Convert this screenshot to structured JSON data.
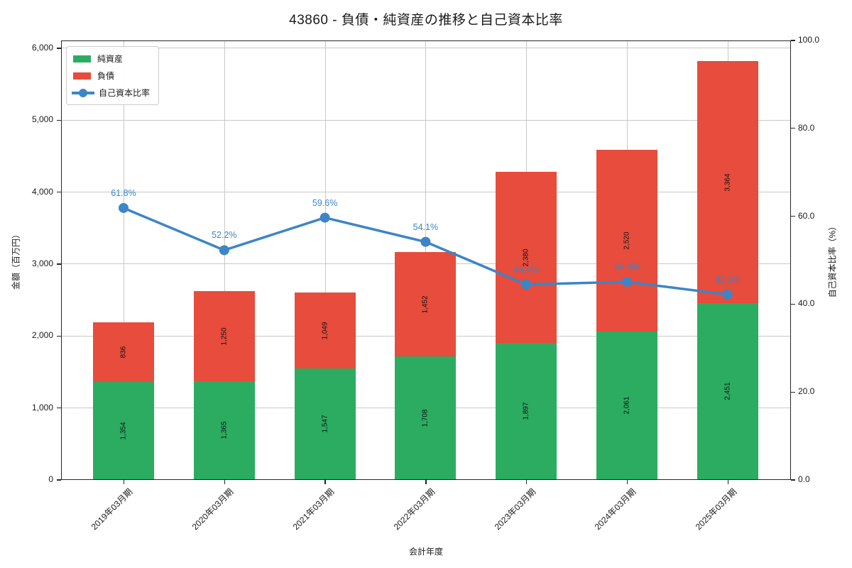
{
  "title": "43860 - 負債・純資産の推移と自己資本比率",
  "legend": {
    "equity": "純資産",
    "liabilities": "負債",
    "ratio": "自己資本比率"
  },
  "axes": {
    "x_label": "会計年度",
    "y_left_label": "金額（百万円）",
    "y_right_label": "自己資本比率（%）"
  },
  "colors": {
    "equity": "#2bac60",
    "liabilities": "#e74c3c",
    "ratio_line": "#3d85c6",
    "grid": "#c9c9c9",
    "spine": "#262626",
    "bar_label": "#111111"
  },
  "chart_data": {
    "type": "bar",
    "subtype": "stacked-bars-with-line-overlay",
    "title": "43860 - 負債・純資産の推移と自己資本比率",
    "xlabel": "会計年度",
    "ylabel_left": "金額（百万円）",
    "ylabel_right": "自己資本比率（%）",
    "categories": [
      "2019年03月期",
      "2020年03月期",
      "2021年03月期",
      "2022年03月期",
      "2023年03月期",
      "2024年03月期",
      "2025年03月期"
    ],
    "series": [
      {
        "name": "純資産",
        "type": "bar",
        "stack": "total",
        "axis": "left",
        "color": "#2bac60",
        "values": [
          1354,
          1365,
          1547,
          1708,
          1897,
          2061,
          2451
        ]
      },
      {
        "name": "負債",
        "type": "bar",
        "stack": "total",
        "axis": "left",
        "color": "#e74c3c",
        "values": [
          836,
          1250,
          1049,
          1452,
          2380,
          2520,
          3364
        ]
      },
      {
        "name": "自己資本比率",
        "type": "line",
        "axis": "right",
        "color": "#3d85c6",
        "values": [
          61.8,
          52.2,
          59.6,
          54.1,
          44.4,
          45.0,
          42.1
        ]
      }
    ],
    "y_left": {
      "ticks": [
        0,
        1000,
        2000,
        3000,
        4000,
        5000,
        6000
      ],
      "lim": [
        0,
        6108
      ],
      "tick_format": "thousands-comma"
    },
    "y_right": {
      "ticks": [
        0,
        20,
        40,
        60,
        80,
        100
      ],
      "lim": [
        0,
        100
      ],
      "tick_format": "one-decimal"
    },
    "grid": true,
    "legend_position": "upper-left",
    "bar_value_labels": "rotated-90-inside-segment",
    "line_point_labels": "percent-above-marker"
  }
}
